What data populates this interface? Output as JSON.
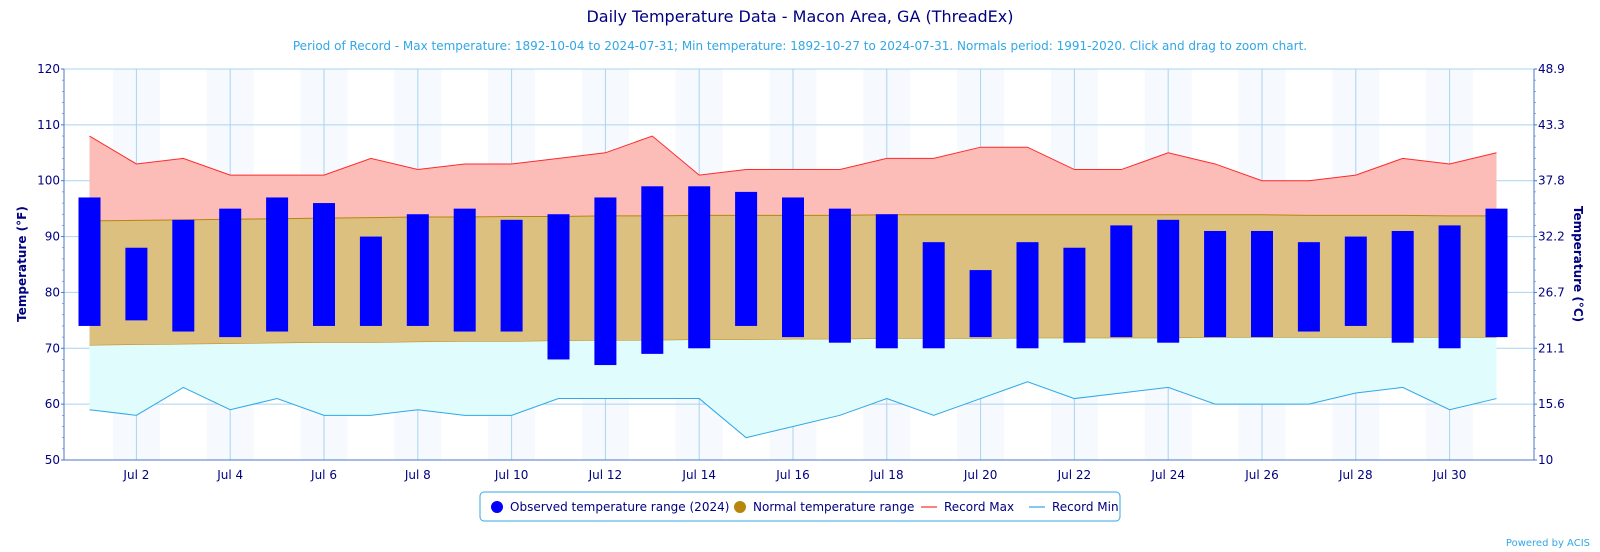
{
  "chart_data": {
    "type": "bar",
    "title": "Daily Temperature Data - Macon Area, GA (ThreadEx)",
    "subtitle": "Period of Record - Max temperature: 1892-10-04 to 2024-07-31; Min temperature: 1892-10-27 to 2024-07-31. Normals period: 1991-2020. Click and drag to zoom chart.",
    "ylabel": "Temperature (°F)",
    "ylabel_right": "Temperature (°C)",
    "ylim": [
      50,
      120
    ],
    "yticks": [
      50,
      60,
      70,
      80,
      90,
      100,
      110,
      120
    ],
    "yticks_right": [
      "10",
      "15.6",
      "21.1",
      "26.7",
      "32.2",
      "37.8",
      "43.3",
      "48.9"
    ],
    "days": [
      1,
      2,
      3,
      4,
      5,
      6,
      7,
      8,
      9,
      10,
      11,
      12,
      13,
      14,
      15,
      16,
      17,
      18,
      19,
      20,
      21,
      22,
      23,
      24,
      25,
      26,
      27,
      28,
      29,
      30,
      31
    ],
    "x_tick_labels": [
      {
        "day": 2,
        "label": "Jul 2"
      },
      {
        "day": 4,
        "label": "Jul 4"
      },
      {
        "day": 6,
        "label": "Jul 6"
      },
      {
        "day": 8,
        "label": "Jul 8"
      },
      {
        "day": 10,
        "label": "Jul 10"
      },
      {
        "day": 12,
        "label": "Jul 12"
      },
      {
        "day": 14,
        "label": "Jul 14"
      },
      {
        "day": 16,
        "label": "Jul 16"
      },
      {
        "day": 18,
        "label": "Jul 18"
      },
      {
        "day": 20,
        "label": "Jul 20"
      },
      {
        "day": 22,
        "label": "Jul 22"
      },
      {
        "day": 24,
        "label": "Jul 24"
      },
      {
        "day": 26,
        "label": "Jul 26"
      },
      {
        "day": 28,
        "label": "Jul 28"
      },
      {
        "day": 30,
        "label": "Jul 30"
      }
    ],
    "series": [
      {
        "name": "Observed temperature range (2024)",
        "color": "#0000ff",
        "high": [
          97,
          88,
          93,
          95,
          97,
          96,
          90,
          94,
          95,
          93,
          94,
          97,
          99,
          99,
          98,
          97,
          95,
          94,
          89,
          84,
          89,
          88,
          92,
          93,
          91,
          91,
          89,
          90,
          91,
          92,
          95
        ],
        "low": [
          74,
          75,
          73,
          72,
          73,
          74,
          74,
          74,
          73,
          73,
          68,
          67,
          69,
          70,
          74,
          72,
          71,
          70,
          70,
          72,
          70,
          71,
          72,
          71,
          72,
          72,
          73,
          74,
          71,
          70,
          72
        ]
      },
      {
        "name": "Normal temperature range",
        "color": "#b8860b",
        "fill": "#dcc080",
        "high": [
          92.8,
          92.9,
          93.0,
          93.1,
          93.2,
          93.3,
          93.4,
          93.5,
          93.5,
          93.6,
          93.6,
          93.7,
          93.7,
          93.8,
          93.8,
          93.8,
          93.8,
          93.9,
          93.9,
          93.9,
          93.9,
          93.9,
          93.9,
          93.9,
          93.9,
          93.9,
          93.8,
          93.8,
          93.8,
          93.7,
          93.7
        ],
        "low": [
          70.5,
          70.6,
          70.7,
          70.8,
          70.9,
          71.0,
          71.0,
          71.1,
          71.2,
          71.2,
          71.3,
          71.4,
          71.4,
          71.5,
          71.5,
          71.6,
          71.6,
          71.7,
          71.7,
          71.7,
          71.8,
          71.8,
          71.8,
          71.8,
          71.9,
          71.9,
          71.9,
          71.9,
          71.9,
          71.9,
          71.9
        ]
      },
      {
        "name": "Record Max",
        "color": "#ff2a2a",
        "fill": "#fcbcb8",
        "values": [
          108,
          103,
          104,
          101,
          101,
          101,
          104,
          102,
          103,
          103,
          104,
          105,
          108,
          101,
          102,
          102,
          102,
          104,
          104,
          106,
          106,
          102,
          102,
          105,
          103,
          100,
          100,
          101,
          104,
          103,
          105
        ]
      },
      {
        "name": "Record Min",
        "color": "#31a7e6",
        "fill": "#e0fcfc",
        "values": [
          59,
          58,
          63,
          59,
          61,
          58,
          58,
          59,
          58,
          58,
          61,
          61,
          61,
          61,
          54,
          56,
          58,
          61,
          58,
          61,
          64,
          61,
          62,
          63,
          60,
          60,
          60,
          62,
          63,
          59,
          61
        ]
      }
    ],
    "legend_position": "bottom-center",
    "grid": true
  },
  "credit": "Powered by ACIS",
  "colors": {
    "title": "#000080",
    "subtitle": "#31a7e6",
    "grid": "#a9d4ef",
    "axis": "#4a78c8"
  }
}
